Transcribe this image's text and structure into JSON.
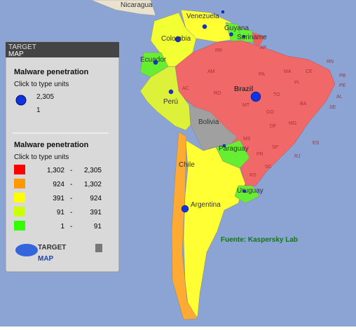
{
  "panel": {
    "logo_top": "TARGET",
    "logo_bottom": "MAP",
    "bubble_title": "Malware penetration",
    "bubble_subtitle": "Click to type units",
    "bubble_max": "2,305",
    "bubble_min": "1",
    "legend_title": "Malware penetration",
    "legend_subtitle": "Click to type units",
    "legend": [
      {
        "from": "1,302",
        "to": "2,305",
        "color": "#ff0000"
      },
      {
        "from": "924",
        "to": "1,302",
        "color": "#ff9900"
      },
      {
        "from": "391",
        "to": "924",
        "color": "#ffff00"
      },
      {
        "from": "91",
        "to": "391",
        "color": "#ccff00"
      },
      {
        "from": "1",
        "to": "91",
        "color": "#33ff00"
      }
    ],
    "brand_top": "TARGET",
    "brand_bottom": "MAP"
  },
  "countries": {
    "nicaragua": "Nicaragua",
    "venezuela": "Venezuela",
    "guyana": "Guyana",
    "suriname": "Suriname",
    "colombia": "Colombia",
    "ecuador": "Ecuador",
    "peru": "Perú",
    "brazil": "Brazil",
    "bolivia": "Bolivia",
    "paraguay": "Paraguay",
    "chile": "Chile",
    "uruguay": "Uruguay",
    "argentina": "Argentina"
  },
  "states": [
    "AM",
    "PA",
    "MA",
    "CE",
    "RN",
    "PB",
    "PE",
    "AL",
    "SE",
    "BA",
    "TO",
    "PI",
    "MT",
    "GO",
    "MG",
    "ES",
    "RJ",
    "SP",
    "MS",
    "PR",
    "SC",
    "RS",
    "AC",
    "RO",
    "AP",
    "RR",
    "DF"
  ],
  "source": "Fuente: Kaspersky Lab"
}
